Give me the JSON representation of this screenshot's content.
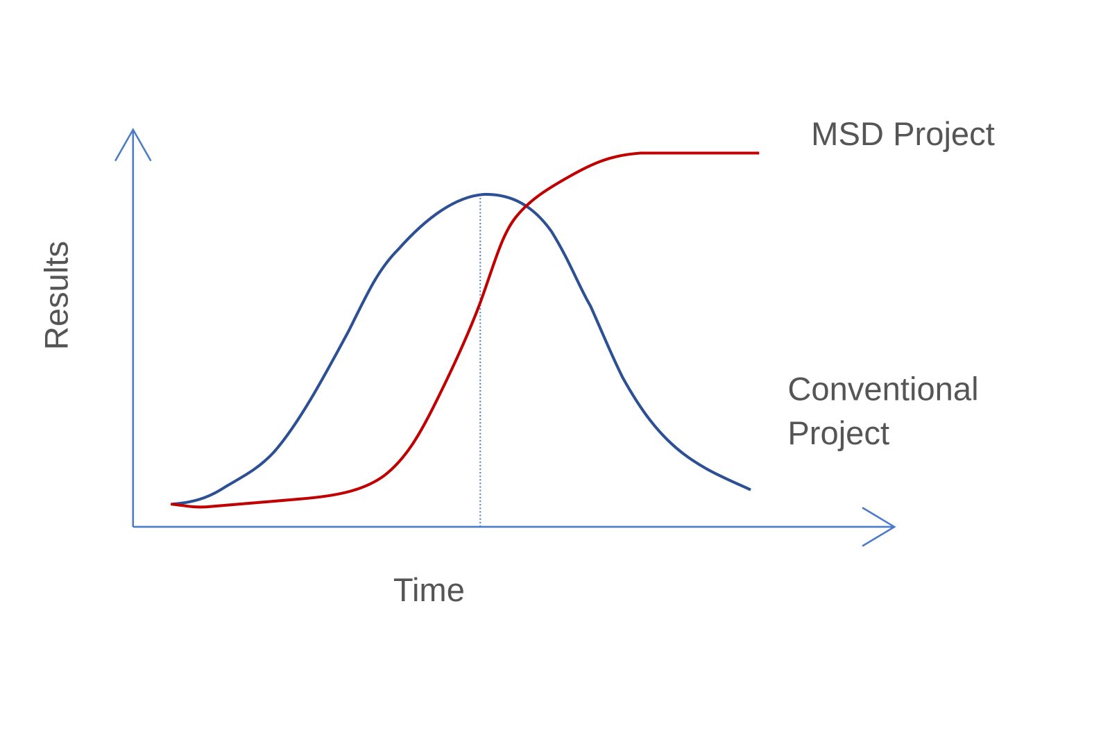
{
  "axes": {
    "y_label": "Results",
    "x_label": "Time"
  },
  "curves": [
    {
      "label_lines": [
        "MSD Project"
      ]
    },
    {
      "label_lines": [
        "Conventional",
        "Project"
      ]
    }
  ]
}
